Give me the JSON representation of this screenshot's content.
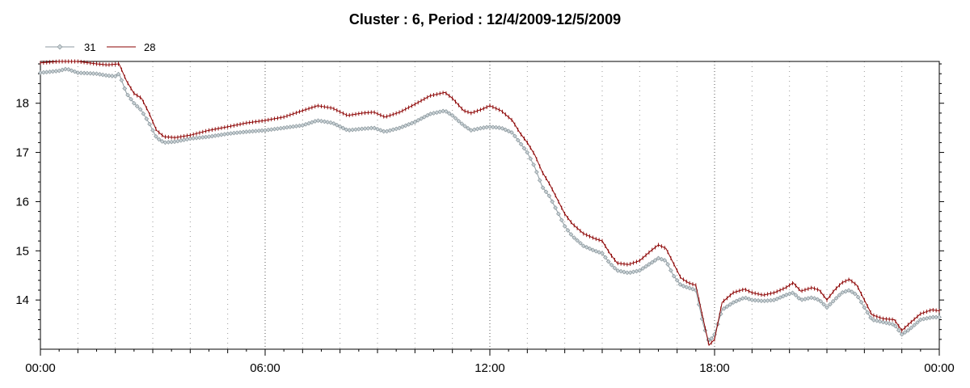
{
  "chart_data": {
    "type": "line",
    "title": "Cluster : 6, Period : 12/4/2009-12/5/2009",
    "xlabel": "",
    "ylabel": "",
    "x_range_hours": [
      0,
      24
    ],
    "ylim": [
      13.0,
      18.85
    ],
    "x_tick_labels": [
      {
        "hour": 0,
        "label": "00:00"
      },
      {
        "hour": 6,
        "label": "06:00"
      },
      {
        "hour": 12,
        "label": "12:00"
      },
      {
        "hour": 18,
        "label": "18:00"
      },
      {
        "hour": 24,
        "label": "00:00"
      }
    ],
    "y_ticks": [
      14,
      15,
      16,
      17,
      18
    ],
    "grid": "dotted vertical lines",
    "legend_position": "top-left",
    "series": [
      {
        "name": "31",
        "color": "#8c9aa0",
        "marker": "diamond",
        "points": [
          [
            0.0,
            18.62
          ],
          [
            0.5,
            18.66
          ],
          [
            0.7,
            18.7
          ],
          [
            1.0,
            18.62
          ],
          [
            1.5,
            18.6
          ],
          [
            1.8,
            18.56
          ],
          [
            2.0,
            18.55
          ],
          [
            2.1,
            18.6
          ],
          [
            2.3,
            18.2
          ],
          [
            2.5,
            18.0
          ],
          [
            2.7,
            17.85
          ],
          [
            2.9,
            17.6
          ],
          [
            3.1,
            17.3
          ],
          [
            3.3,
            17.2
          ],
          [
            3.6,
            17.22
          ],
          [
            4.0,
            17.28
          ],
          [
            4.5,
            17.32
          ],
          [
            5.0,
            17.38
          ],
          [
            5.5,
            17.42
          ],
          [
            6.0,
            17.45
          ],
          [
            6.5,
            17.5
          ],
          [
            7.0,
            17.55
          ],
          [
            7.4,
            17.65
          ],
          [
            7.8,
            17.6
          ],
          [
            8.2,
            17.45
          ],
          [
            8.6,
            17.48
          ],
          [
            8.9,
            17.5
          ],
          [
            9.2,
            17.42
          ],
          [
            9.6,
            17.5
          ],
          [
            10.0,
            17.62
          ],
          [
            10.4,
            17.78
          ],
          [
            10.8,
            17.85
          ],
          [
            11.0,
            17.75
          ],
          [
            11.3,
            17.55
          ],
          [
            11.5,
            17.45
          ],
          [
            11.8,
            17.5
          ],
          [
            12.0,
            17.52
          ],
          [
            12.3,
            17.5
          ],
          [
            12.6,
            17.4
          ],
          [
            12.8,
            17.2
          ],
          [
            13.0,
            17.0
          ],
          [
            13.2,
            16.7
          ],
          [
            13.4,
            16.3
          ],
          [
            13.6,
            16.1
          ],
          [
            13.8,
            15.8
          ],
          [
            14.0,
            15.5
          ],
          [
            14.2,
            15.3
          ],
          [
            14.5,
            15.1
          ],
          [
            14.8,
            15.0
          ],
          [
            15.0,
            14.95
          ],
          [
            15.2,
            14.75
          ],
          [
            15.4,
            14.6
          ],
          [
            15.7,
            14.55
          ],
          [
            16.0,
            14.6
          ],
          [
            16.3,
            14.75
          ],
          [
            16.5,
            14.85
          ],
          [
            16.7,
            14.8
          ],
          [
            16.9,
            14.5
          ],
          [
            17.1,
            14.3
          ],
          [
            17.3,
            14.25
          ],
          [
            17.5,
            14.2
          ],
          [
            17.7,
            13.5
          ],
          [
            17.85,
            13.15
          ],
          [
            18.0,
            13.3
          ],
          [
            18.2,
            13.8
          ],
          [
            18.5,
            13.95
          ],
          [
            18.8,
            14.05
          ],
          [
            19.0,
            14.0
          ],
          [
            19.3,
            13.98
          ],
          [
            19.6,
            14.0
          ],
          [
            19.9,
            14.1
          ],
          [
            20.1,
            14.15
          ],
          [
            20.3,
            14.0
          ],
          [
            20.6,
            14.05
          ],
          [
            20.8,
            14.0
          ],
          [
            21.0,
            13.85
          ],
          [
            21.2,
            14.0
          ],
          [
            21.4,
            14.15
          ],
          [
            21.6,
            14.2
          ],
          [
            21.8,
            14.1
          ],
          [
            22.0,
            13.85
          ],
          [
            22.2,
            13.6
          ],
          [
            22.5,
            13.55
          ],
          [
            22.8,
            13.5
          ],
          [
            23.0,
            13.3
          ],
          [
            23.2,
            13.4
          ],
          [
            23.5,
            13.6
          ],
          [
            23.8,
            13.65
          ],
          [
            24.0,
            13.65
          ]
        ]
      },
      {
        "name": "28",
        "color": "#8b0000",
        "marker": "tick",
        "points": [
          [
            0.0,
            18.82
          ],
          [
            0.5,
            18.85
          ],
          [
            1.0,
            18.85
          ],
          [
            1.5,
            18.8
          ],
          [
            1.8,
            18.78
          ],
          [
            2.1,
            18.8
          ],
          [
            2.3,
            18.45
          ],
          [
            2.5,
            18.2
          ],
          [
            2.7,
            18.1
          ],
          [
            2.9,
            17.8
          ],
          [
            3.1,
            17.45
          ],
          [
            3.3,
            17.32
          ],
          [
            3.6,
            17.3
          ],
          [
            4.0,
            17.35
          ],
          [
            4.5,
            17.45
          ],
          [
            5.0,
            17.52
          ],
          [
            5.5,
            17.6
          ],
          [
            6.0,
            17.65
          ],
          [
            6.5,
            17.72
          ],
          [
            7.0,
            17.85
          ],
          [
            7.4,
            17.95
          ],
          [
            7.8,
            17.9
          ],
          [
            8.2,
            17.75
          ],
          [
            8.6,
            17.8
          ],
          [
            8.9,
            17.82
          ],
          [
            9.2,
            17.72
          ],
          [
            9.6,
            17.82
          ],
          [
            10.0,
            17.98
          ],
          [
            10.4,
            18.15
          ],
          [
            10.8,
            18.22
          ],
          [
            11.0,
            18.1
          ],
          [
            11.3,
            17.85
          ],
          [
            11.5,
            17.8
          ],
          [
            11.8,
            17.88
          ],
          [
            12.0,
            17.95
          ],
          [
            12.3,
            17.85
          ],
          [
            12.6,
            17.65
          ],
          [
            12.8,
            17.4
          ],
          [
            13.0,
            17.2
          ],
          [
            13.2,
            16.95
          ],
          [
            13.4,
            16.6
          ],
          [
            13.6,
            16.35
          ],
          [
            13.8,
            16.05
          ],
          [
            14.0,
            15.75
          ],
          [
            14.2,
            15.55
          ],
          [
            14.5,
            15.35
          ],
          [
            14.8,
            15.25
          ],
          [
            15.0,
            15.2
          ],
          [
            15.2,
            14.95
          ],
          [
            15.4,
            14.75
          ],
          [
            15.7,
            14.72
          ],
          [
            16.0,
            14.8
          ],
          [
            16.3,
            15.0
          ],
          [
            16.5,
            15.12
          ],
          [
            16.7,
            15.05
          ],
          [
            16.9,
            14.75
          ],
          [
            17.1,
            14.45
          ],
          [
            17.3,
            14.35
          ],
          [
            17.5,
            14.3
          ],
          [
            17.7,
            13.6
          ],
          [
            17.85,
            13.08
          ],
          [
            18.0,
            13.2
          ],
          [
            18.2,
            13.95
          ],
          [
            18.5,
            14.15
          ],
          [
            18.8,
            14.22
          ],
          [
            19.0,
            14.15
          ],
          [
            19.3,
            14.1
          ],
          [
            19.6,
            14.15
          ],
          [
            19.9,
            14.25
          ],
          [
            20.1,
            14.35
          ],
          [
            20.3,
            14.18
          ],
          [
            20.6,
            14.25
          ],
          [
            20.8,
            14.2
          ],
          [
            21.0,
            14.0
          ],
          [
            21.2,
            14.2
          ],
          [
            21.4,
            14.35
          ],
          [
            21.6,
            14.42
          ],
          [
            21.8,
            14.3
          ],
          [
            22.0,
            14.0
          ],
          [
            22.2,
            13.7
          ],
          [
            22.5,
            13.62
          ],
          [
            22.8,
            13.6
          ],
          [
            23.0,
            13.38
          ],
          [
            23.2,
            13.52
          ],
          [
            23.5,
            13.72
          ],
          [
            23.8,
            13.8
          ],
          [
            24.0,
            13.78
          ]
        ]
      }
    ]
  }
}
